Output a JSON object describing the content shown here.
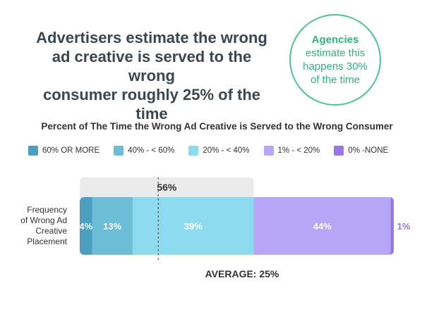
{
  "headline": {
    "line1": "Advertisers estimate the wrong",
    "line2": "ad creative is served to the wrong",
    "line3": "consumer roughly 25% of the time"
  },
  "callout": {
    "line1": "Agencies",
    "line2": "estimate this",
    "line3": "happens 30%",
    "line4": "of the time",
    "color": "#4cc591"
  },
  "chart_data": {
    "type": "bar",
    "title": "Percent of The Time the Wrong Ad Creative is Served to the Wrong Consumer",
    "row_label": [
      "Frequency",
      "of Wrong Ad",
      "Creative",
      "Placement"
    ],
    "series": [
      {
        "name": "60% OR MORE",
        "value": 4,
        "label": "4%",
        "color": "#4b9fc0"
      },
      {
        "name": "40% - < 60%",
        "value": 13,
        "label": "13%",
        "color": "#6cbdd6"
      },
      {
        "name": "20% - < 40%",
        "value": 39,
        "label": "39%",
        "color": "#8cdbef"
      },
      {
        "name": "1% - < 20%",
        "value": 44,
        "label": "44%",
        "color": "#b7a6f5"
      },
      {
        "name": "0% -NONE",
        "value": 1,
        "label": "1%",
        "color": "#9a77e4"
      }
    ],
    "total": 101,
    "bracket": {
      "value": 56,
      "label": "56%",
      "covers_series": [
        0,
        1,
        2
      ]
    },
    "average": {
      "value": 25,
      "label": "AVERAGE: 25%"
    }
  }
}
